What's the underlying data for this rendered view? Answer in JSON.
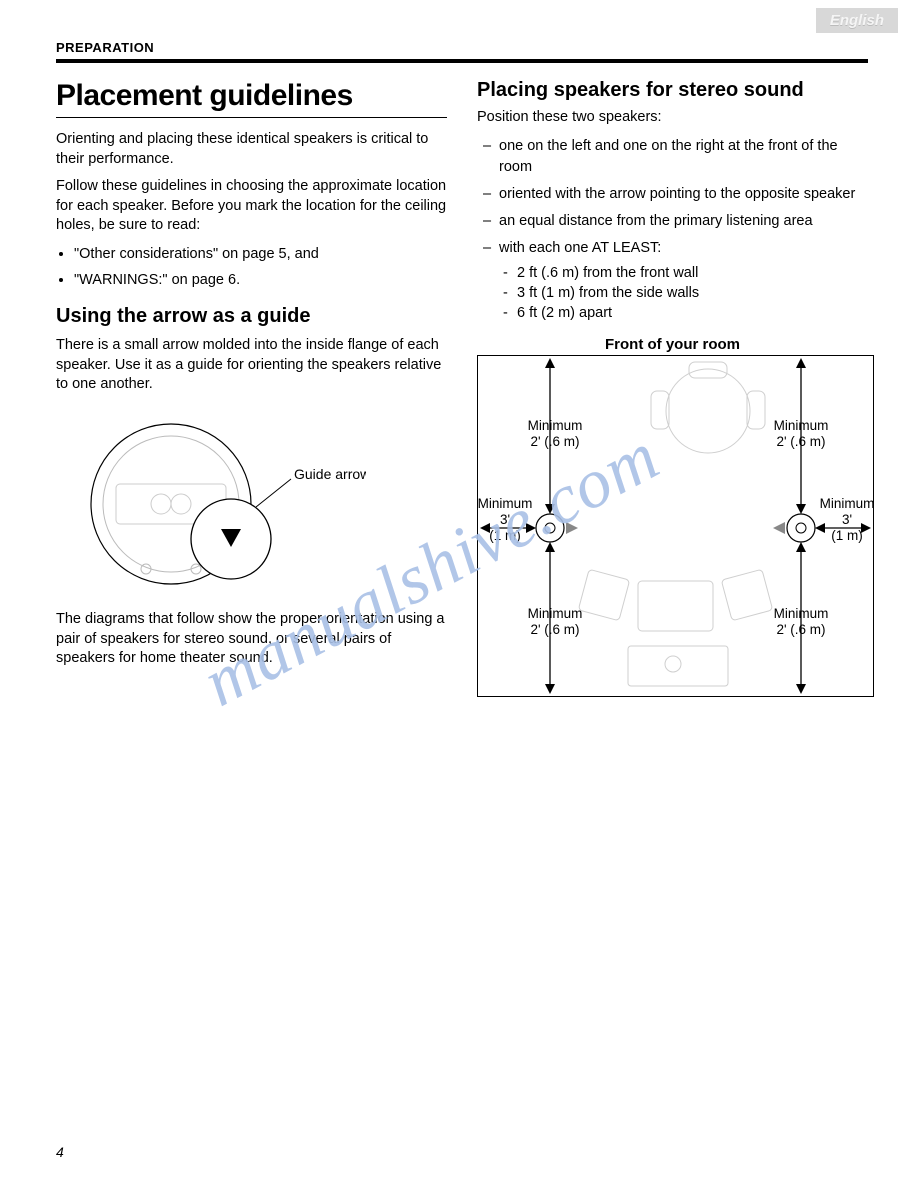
{
  "lang_tab": "English",
  "section_header": "PREPARATION",
  "page_number": "4",
  "watermark": "manualshive.com",
  "left": {
    "title": "Placement guidelines",
    "p1": "Orienting and placing these identical speakers is critical to their performance.",
    "p2": "Follow these guidelines in choosing the approximate location for each speaker. Before you mark the location for the ceiling holes, be sure to read:",
    "bullet1": "\"Other considerations\" on page 5, and",
    "bullet2": "\"WARNINGS:\" on page 6.",
    "h2": "Using the arrow as a guide",
    "p3": "There is a small arrow molded into the inside flange of each speaker. Use it as a guide for orienting the speakers relative to one another.",
    "guide_arrow_label": "Guide arrow",
    "p4": "The diagrams that follow show the proper orientation using a pair of speakers for stereo sound, or several pairs of speakers for home theater sound."
  },
  "right": {
    "h2": "Placing speakers for stereo sound",
    "intro": "Position these two speakers:",
    "d1": "one on the left and one on the right at the front of the room",
    "d2": "oriented with the arrow pointing to the opposite speaker",
    "d3": "an equal distance from the primary listening area",
    "d4": "with each one AT LEAST:",
    "s1": "2 ft (.6 m) from the front wall",
    "s2": "3 ft (1 m) from the side walls",
    "s3": "6 ft (2 m) apart",
    "diagram_title": "Front of your room",
    "labels": {
      "min2a": "Minimum\n2' (.6 m)",
      "min2b": "Minimum\n2' (.6 m)",
      "min2c": "Minimum\n2' (.6 m)",
      "min2d": "Minimum\n2' (.6 m)",
      "min3a": "Minimum\n3'\n(1 m)",
      "min3b": "Minimum\n3'\n(1 m)"
    }
  },
  "colors": {
    "text": "#000000",
    "bg": "#ffffff",
    "lang_tab_bg": "#d8d8d8",
    "watermark": "#a9c0e6",
    "diagram_light": "#cfcfcf"
  }
}
